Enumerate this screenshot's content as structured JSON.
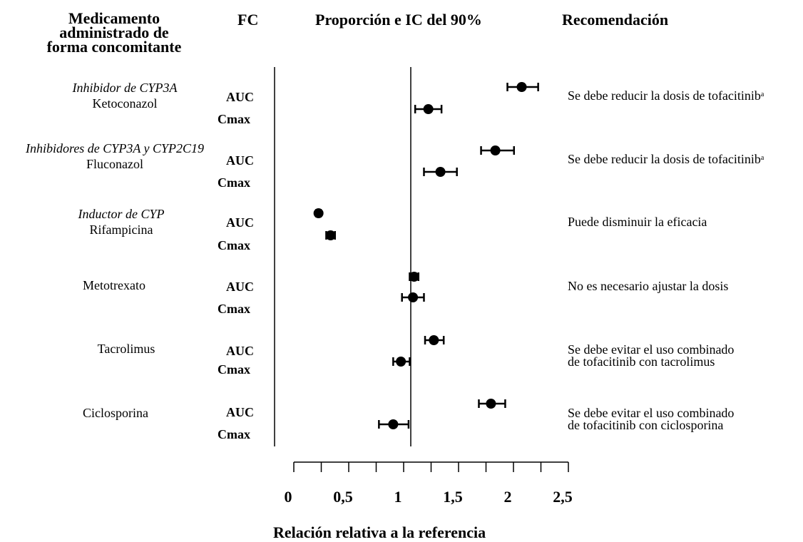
{
  "headers": {
    "drug_line1": "Medicamento",
    "drug_line2": "administrado de",
    "drug_line3": "forma concomitante",
    "pk": "FC",
    "ratio": "Proporción e IC del 90%",
    "recommendation": "Recomendación"
  },
  "groups": [
    {
      "category": "Inhibidor de CYP3A",
      "drug": "Ketoconazol",
      "rec_line1": "Se debe reducir la dosis de tofacitinib",
      "rec_sup": "a",
      "rec_line2": ""
    },
    {
      "category": "Inhibidores de CYP3A y CYP2C19",
      "drug": "Fluconazol",
      "rec_line1": "Se debe reducir la dosis de tofacitinib",
      "rec_sup": "a",
      "rec_line2": ""
    },
    {
      "category": "Inductor de CYP",
      "drug": "Rifampicina",
      "rec_line1": "Puede disminuir la eficacia",
      "rec_sup": "",
      "rec_line2": ""
    },
    {
      "category": "",
      "drug": "Metotrexato",
      "rec_line1": "No es necesario ajustar la dosis",
      "rec_sup": "",
      "rec_line2": ""
    },
    {
      "category": "",
      "drug": "Tacrolimus",
      "rec_line1": "Se debe evitar el uso combinado",
      "rec_sup": "",
      "rec_line2": "de tofacitinib con tacrolimus"
    },
    {
      "category": "",
      "drug": "Ciclosporina",
      "rec_line1": "Se debe evitar el uso combinado",
      "rec_sup": "",
      "rec_line2": "de tofacitinib con ciclosporina"
    }
  ],
  "pk_labels": {
    "auc": "AUC",
    "cmax": "Cmax"
  },
  "chart_data": {
    "type": "scatter",
    "subtype": "forest-plot",
    "title": "Proporción e IC del 90%",
    "xlabel": "Relación relativa a la referencia",
    "xlim": [
      0,
      2.5
    ],
    "xticks": [
      0,
      0.25,
      0.5,
      0.75,
      1,
      1.25,
      1.5,
      1.75,
      2,
      2.25,
      2.5
    ],
    "xtick_labels": [
      {
        "value": 0,
        "label": "0"
      },
      {
        "value": 0.5,
        "label": "0,5"
      },
      {
        "value": 1,
        "label": "1"
      },
      {
        "value": 1.5,
        "label": "1,5"
      },
      {
        "value": 2,
        "label": "2"
      },
      {
        "value": 2.5,
        "label": "2,5"
      }
    ],
    "reference_line": 1.0,
    "points": [
      {
        "drug": "Ketoconazol",
        "pk": "AUC",
        "ratio": 2.01,
        "ci_low": 1.88,
        "ci_high": 2.16
      },
      {
        "drug": "Ketoconazol",
        "pk": "Cmax",
        "ratio": 1.16,
        "ci_low": 1.04,
        "ci_high": 1.28
      },
      {
        "drug": "Fluconazol",
        "pk": "AUC",
        "ratio": 1.77,
        "ci_low": 1.64,
        "ci_high": 1.94
      },
      {
        "drug": "Fluconazol",
        "pk": "Cmax",
        "ratio": 1.27,
        "ci_low": 1.12,
        "ci_high": 1.42
      },
      {
        "drug": "Rifampicina",
        "pk": "AUC",
        "ratio": 0.16,
        "ci_low": 0.14,
        "ci_high": 0.18
      },
      {
        "drug": "Rifampicina",
        "pk": "Cmax",
        "ratio": 0.27,
        "ci_low": 0.23,
        "ci_high": 0.31
      },
      {
        "drug": "Metotrexato",
        "pk": "AUC",
        "ratio": 1.03,
        "ci_low": 0.99,
        "ci_high": 1.07
      },
      {
        "drug": "Metotrexato",
        "pk": "Cmax",
        "ratio": 1.02,
        "ci_low": 0.92,
        "ci_high": 1.12
      },
      {
        "drug": "Tacrolimus",
        "pk": "AUC",
        "ratio": 1.21,
        "ci_low": 1.13,
        "ci_high": 1.3
      },
      {
        "drug": "Tacrolimus",
        "pk": "Cmax",
        "ratio": 0.91,
        "ci_low": 0.84,
        "ci_high": 0.99
      },
      {
        "drug": "Ciclosporina",
        "pk": "AUC",
        "ratio": 1.73,
        "ci_low": 1.62,
        "ci_high": 1.86
      },
      {
        "drug": "Ciclosporina",
        "pk": "Cmax",
        "ratio": 0.84,
        "ci_low": 0.71,
        "ci_high": 0.98
      }
    ]
  }
}
